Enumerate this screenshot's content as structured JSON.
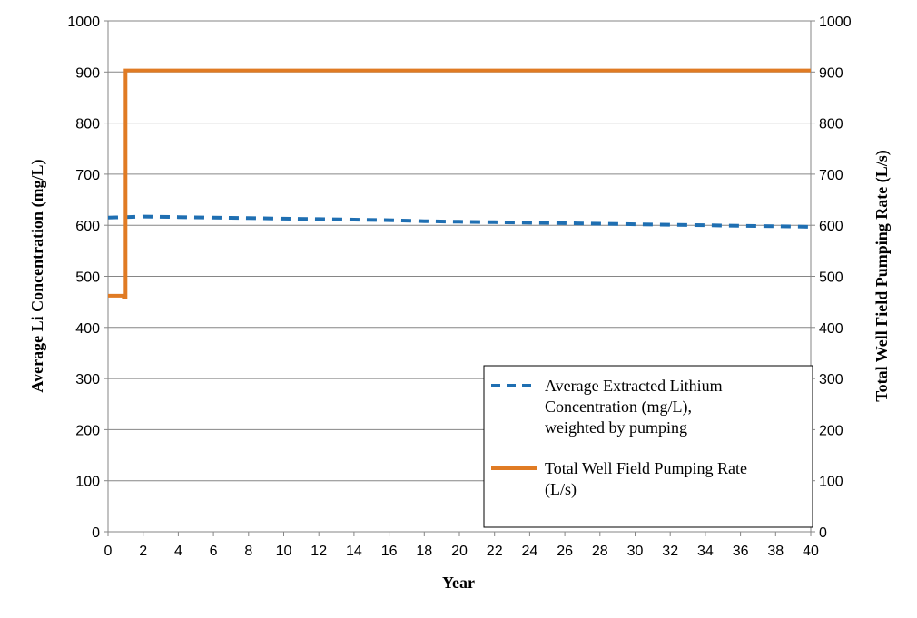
{
  "chart_data": {
    "type": "line",
    "title": "",
    "xlabel": "Year",
    "ylabel_left": "Average Li Concentration (mg/L)",
    "ylabel_right": "Total Well Field Pumping Rate (L/s)",
    "xlim": [
      0,
      40
    ],
    "ylim_left": [
      0,
      1000
    ],
    "ylim_right": [
      0,
      1000
    ],
    "x_ticks": [
      0,
      2,
      4,
      6,
      8,
      10,
      12,
      14,
      16,
      18,
      20,
      22,
      24,
      26,
      28,
      30,
      32,
      34,
      36,
      38,
      40
    ],
    "y_ticks": [
      0,
      100,
      200,
      300,
      400,
      500,
      600,
      700,
      800,
      900,
      1000
    ],
    "grid": "horizontal",
    "legend_position": "bottom-right",
    "series": [
      {
        "name_lines": [
          "Average Extracted Lithium",
          "Concentration (mg/L),",
          "weighted by pumping"
        ],
        "axis": "left",
        "style": "dashed",
        "color": "#1F6FB2",
        "x": [
          0,
          1,
          2,
          4,
          6,
          8,
          10,
          12,
          14,
          16,
          18,
          20,
          22,
          24,
          26,
          28,
          30,
          32,
          34,
          36,
          38,
          40
        ],
        "y": [
          615,
          616,
          617,
          616,
          615,
          614,
          613,
          612,
          611,
          610,
          608,
          607,
          606,
          605,
          604,
          603,
          602,
          601,
          600,
          599,
          598,
          597
        ]
      },
      {
        "name_lines": [
          "Total Well Field Pumping Rate",
          "(L/s)"
        ],
        "axis": "right",
        "style": "solid",
        "color": "#E07B24",
        "x": [
          0,
          0.9,
          0.9,
          1,
          1,
          40
        ],
        "y": [
          462,
          462,
          460,
          460,
          903,
          903
        ]
      }
    ]
  }
}
